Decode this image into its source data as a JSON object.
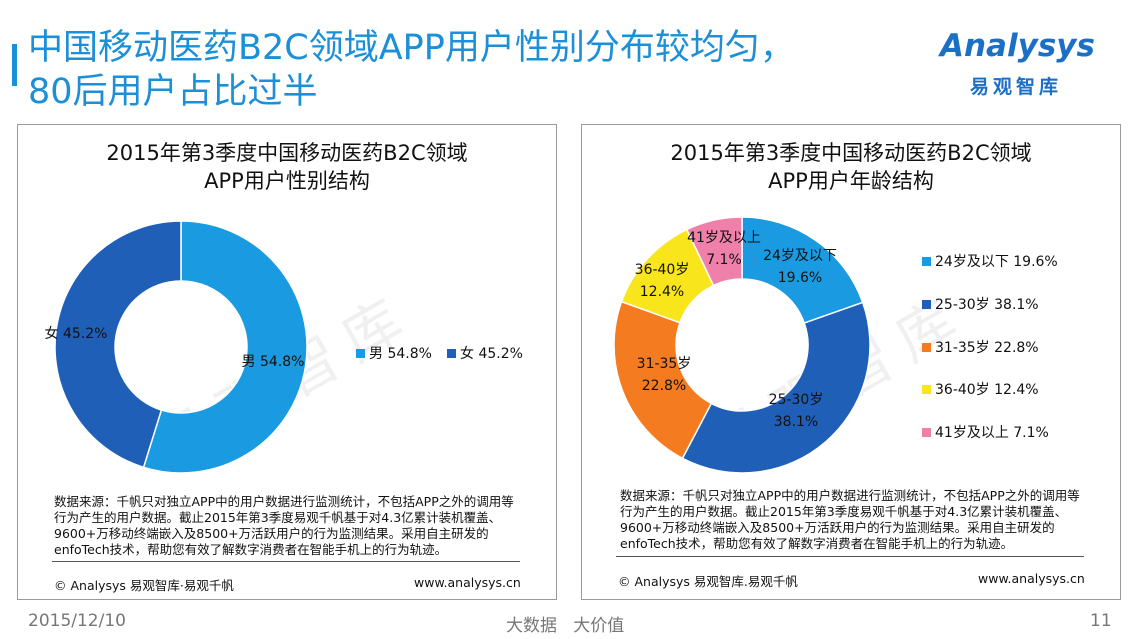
{
  "header": {
    "title_line1": "中国移动医药B2C领域APP用户性别分布较均匀，",
    "title_line2": "80后用户占比过半",
    "logo_text": "Analysys",
    "logo_sub": "易观智库"
  },
  "left_panel": {
    "title_line1": "2015年第3季度中国移动医药B2C领域",
    "title_line2": "APP用户性别结构",
    "note": "数据来源：千帆只对独立APP中的用户数据进行监测统计，不包括APP之外的调用等行为产生的用户数据。截止2015年第3季度易观千帆基于对4.3亿累计装机覆盖、9600+万移动终端嵌入及8500+万活跃用户的行为监测结果。采用自主研发的enfoTech技术，帮助您有效了解数字消费者在智能手机上的行为轨迹。",
    "copyright": "© Analysys 易观智库·易观千帆",
    "url": "www.analysys.cn",
    "watermark": "易观智库"
  },
  "right_panel": {
    "title_line1": "2015年第3季度中国移动医药B2C领域",
    "title_line2": "APP用户年龄结构",
    "note": "数据来源：千帆只对独立APP中的用户数据进行监测统计，不包括APP之外的调用等行为产生的用户数据。截止2015年第3季度易观千帆基于对4.3亿累计装机覆盖、9600+万移动终端嵌入及8500+万活跃用户的行为监测结果。采用自主研发的enfoTech技术，帮助您有效了解数字消费者在智能手机上的行为轨迹。",
    "copyright": "© Analysys 易观智库.易观千帆",
    "url": "www.analysys.cn",
    "watermark": "易观智库"
  },
  "footer": {
    "date": "2015/12/10",
    "slogan": "大数据   大价值",
    "page": "11"
  },
  "chart_data": [
    {
      "type": "pie",
      "title": "2015年第3季度中国移动医药B2C领域APP用户性别结构",
      "donut": true,
      "slices": [
        {
          "label": "男",
          "value": 54.8,
          "display": "54.8%",
          "color": "#1a9ae0",
          "label_color": "#111111"
        },
        {
          "label": "女",
          "value": 45.2,
          "display": "45.2%",
          "color": "#1f5fb8",
          "label_color": "#111111"
        }
      ],
      "legend": "right"
    },
    {
      "type": "pie",
      "title": "2015年第3季度中国移动医药B2C领域APP用户年龄结构",
      "donut": true,
      "slices": [
        {
          "label": "24岁及以下",
          "value": 19.6,
          "display": "19.6%",
          "color": "#1a9ae0",
          "label_color": "#111111"
        },
        {
          "label": "25-30岁",
          "value": 38.1,
          "display": "38.1%",
          "color": "#1f5fb8",
          "label_color": "#111111"
        },
        {
          "label": "31-35岁",
          "value": 22.8,
          "display": "22.8%",
          "color": "#f47b20",
          "label_color": "#111111"
        },
        {
          "label": "36-40岁",
          "value": 12.4,
          "display": "12.4%",
          "color": "#f9e51c",
          "label_color": "#111111"
        },
        {
          "label": "41岁及以上",
          "value": 7.1,
          "display": "7.1%",
          "color": "#ef80a9",
          "label_color": "#111111"
        }
      ],
      "legend": "right"
    }
  ]
}
